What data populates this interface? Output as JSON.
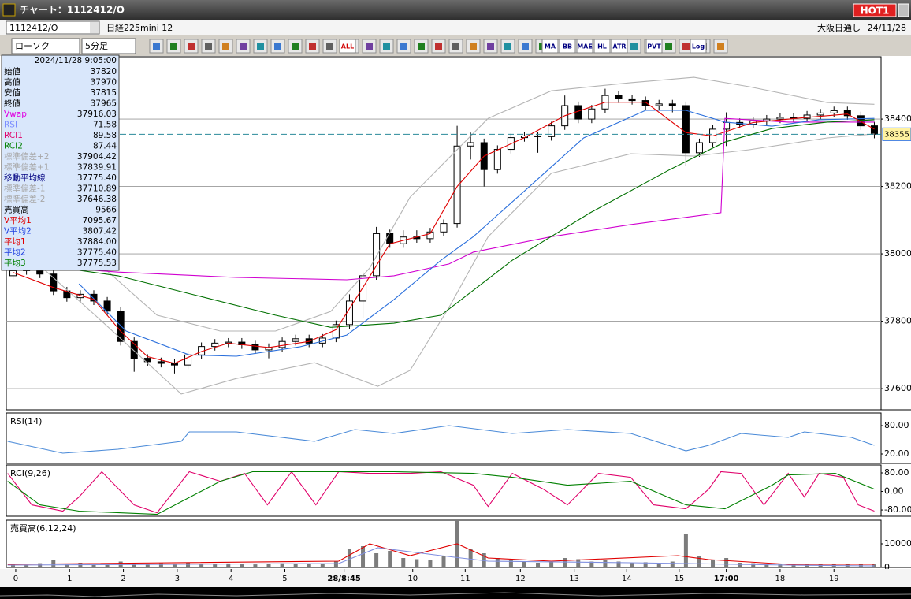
{
  "window": {
    "title": "チャート：1112412/O",
    "hot_button": "HOT1"
  },
  "symbol_bar": {
    "code": "1112412/O",
    "name": "日経225mini 12",
    "market": "大阪日通し",
    "date": "24/11/28"
  },
  "toolbar": {
    "chart_type": "ローソク",
    "interval": "5分足",
    "icon_labels": [
      "ALL",
      "MA",
      "BB",
      "MAE",
      "HL",
      "ATR",
      "PVT",
      "Log"
    ]
  },
  "info_panel": {
    "datetime": "2024/11/28 9:05:00",
    "rows": [
      {
        "label": "始値",
        "value": "37820",
        "color": "#000000"
      },
      {
        "label": "高値",
        "value": "37970",
        "color": "#000000"
      },
      {
        "label": "安値",
        "value": "37815",
        "color": "#000000"
      },
      {
        "label": "終値",
        "value": "37965",
        "color": "#000000"
      },
      {
        "label": "Vwap",
        "value": "37916.03",
        "color": "#e000e0"
      },
      {
        "label": "RSI",
        "value": "71.58",
        "color": "#7a8cff"
      },
      {
        "label": "RCI1",
        "value": "89.58",
        "color": "#e0006a"
      },
      {
        "label": "RCI2",
        "value": "87.44",
        "color": "#008000"
      },
      {
        "label": "標準偏差+2",
        "value": "37904.42",
        "color": "#a8a8a8"
      },
      {
        "label": "標準偏差+1",
        "value": "37839.91",
        "color": "#a8a8a8"
      },
      {
        "label": "移動平均線",
        "value": "37775.40",
        "color": "#000080"
      },
      {
        "label": "標準偏差-1",
        "value": "37710.89",
        "color": "#a8a8a8"
      },
      {
        "label": "標準偏差-2",
        "value": "37646.38",
        "color": "#a8a8a8"
      },
      {
        "label": "売買高",
        "value": "9566",
        "color": "#000000"
      },
      {
        "label": "V平均1",
        "value": "7095.67",
        "color": "#e00000"
      },
      {
        "label": "V平均2",
        "value": "3807.42",
        "color": "#2040e0"
      },
      {
        "label": "平均1",
        "value": "37884.00",
        "color": "#e00000"
      },
      {
        "label": "平均2",
        "value": "37775.40",
        "color": "#2040e0"
      },
      {
        "label": "平均3",
        "value": "37775.53",
        "color": "#008000"
      }
    ]
  },
  "chart_data": [
    {
      "type": "candlestick",
      "xlim": [
        0,
        65
      ],
      "ylim": [
        37537,
        38585
      ],
      "yticks": [
        37600,
        37800,
        38000,
        38200,
        38400
      ],
      "grid": true,
      "up_color": "#ffffff",
      "down_color": "#000000",
      "current_price": 38355,
      "current_price_color": "#2a8a9a",
      "x": [
        0.5,
        1.5,
        2.5,
        3.5,
        4.5,
        5.5,
        6.5,
        7.5,
        8.5,
        9.5,
        10.5,
        11.5,
        12.5,
        13.5,
        14.5,
        15.5,
        16.5,
        17.5,
        18.5,
        19.5,
        20.5,
        21.5,
        22.5,
        23.5,
        24.5,
        25.5,
        26.5,
        27.5,
        28.5,
        29.5,
        30.5,
        31.5,
        32.5,
        33.5,
        34.5,
        35.5,
        36.5,
        37.5,
        38.5,
        39.5,
        40.5,
        41.5,
        42.5,
        43.5,
        44.5,
        45.5,
        46.5,
        47.5,
        48.5,
        49.5,
        50.5,
        51.5,
        52.5,
        53.5,
        54.5,
        55.5,
        56.5,
        57.5,
        58.5,
        59.5,
        60.5,
        61.5,
        62.5,
        63.5,
        64.5
      ],
      "open": [
        37935,
        37950,
        37960,
        37940,
        37890,
        37870,
        37880,
        37860,
        37830,
        37740,
        37690,
        37680,
        37675,
        37670,
        37700,
        37725,
        37735,
        37738,
        37730,
        37715,
        37722,
        37740,
        37748,
        37735,
        37750,
        37790,
        37860,
        37935,
        38060,
        38030,
        38050,
        38045,
        38065,
        38090,
        38320,
        38330,
        38250,
        38310,
        38345,
        38350,
        38348,
        38380,
        38440,
        38400,
        38430,
        38470,
        38460,
        38455,
        38440,
        38445,
        38440,
        38300,
        38330,
        38370,
        38390,
        38385,
        38395,
        38400,
        38405,
        38402,
        38412,
        38418,
        38425,
        38410,
        38380
      ],
      "high": [
        37962,
        37972,
        37972,
        37952,
        37902,
        37892,
        37892,
        37872,
        37842,
        37752,
        37702,
        37692,
        37687,
        37712,
        37737,
        37747,
        37750,
        37750,
        37742,
        37734,
        37752,
        37760,
        37760,
        37762,
        37802,
        37880,
        37947,
        38080,
        38072,
        38070,
        38070,
        38077,
        38102,
        38380,
        38360,
        38342,
        38322,
        38357,
        38362,
        38362,
        38392,
        38470,
        38452,
        38442,
        38490,
        38482,
        38472,
        38467,
        38457,
        38457,
        38452,
        38342,
        38382,
        38420,
        38402,
        38407,
        38412,
        38417,
        38417,
        38424,
        38430,
        38437,
        38437,
        38422,
        38392
      ],
      "low": [
        37923,
        37938,
        37928,
        37878,
        37858,
        37858,
        37848,
        37818,
        37728,
        37650,
        37668,
        37663,
        37645,
        37658,
        37688,
        37713,
        37723,
        37718,
        37703,
        37690,
        37710,
        37728,
        37723,
        37723,
        37738,
        37778,
        37810,
        37923,
        38018,
        38018,
        38033,
        38033,
        38053,
        38078,
        38280,
        38200,
        38238,
        38298,
        38333,
        38300,
        38336,
        38368,
        38388,
        38388,
        38418,
        38448,
        38443,
        38428,
        38428,
        38420,
        38260,
        38288,
        38318,
        38320,
        38373,
        38373,
        38383,
        38388,
        38390,
        38390,
        38400,
        38406,
        38398,
        38368,
        38343
      ],
      "close": [
        37950,
        37960,
        37940,
        37890,
        37870,
        37880,
        37860,
        37830,
        37740,
        37690,
        37680,
        37675,
        37670,
        37700,
        37725,
        37735,
        37738,
        37730,
        37715,
        37722,
        37740,
        37748,
        37735,
        37750,
        37790,
        37860,
        37935,
        38060,
        38030,
        38050,
        38045,
        38065,
        38090,
        38320,
        38330,
        38250,
        38310,
        38345,
        38350,
        38348,
        38380,
        38440,
        38400,
        38430,
        38470,
        38460,
        38455,
        38440,
        38445,
        38440,
        38300,
        38330,
        38370,
        38390,
        38385,
        38395,
        38400,
        38405,
        38402,
        38412,
        38418,
        38425,
        38410,
        38380,
        38355
      ],
      "series": [
        {
          "color": "#b4b4b4",
          "x": [
            0.1,
            6.6,
            11.2,
            15.9,
            20.0,
            24.1,
            27.0,
            30.0,
            32.9,
            35.8,
            40.5,
            46.4,
            51.1,
            55.2,
            61.0,
            64.5
          ],
          "values": [
            38098,
            37981,
            37818,
            37771,
            37771,
            37829,
            37958,
            38168,
            38285,
            38402,
            38484,
            38508,
            38524,
            38496,
            38449,
            38444
          ]
        },
        {
          "color": "#b4b4b4",
          "x": [
            0.1,
            6.6,
            13.0,
            17.1,
            22.9,
            27.6,
            30.0,
            32.9,
            35.8,
            40.5,
            46.4,
            51.1,
            55.2,
            61.0,
            64.5
          ],
          "values": [
            38051,
            37818,
            37584,
            37630,
            37677,
            37607,
            37654,
            37841,
            38051,
            38239,
            38297,
            38290,
            38309,
            38344,
            38356
          ]
        },
        {
          "color": "#d000d0",
          "x": [
            0.1,
            8.3,
            17.1,
            25.3,
            28.8,
            32.9,
            34.7,
            40.5,
            46.4,
            53.1,
            53.4,
            58.1,
            64.5
          ],
          "values": [
            37970,
            37946,
            37930,
            37923,
            37935,
            37970,
            38005,
            38051,
            38087,
            38122,
            38402,
            38391,
            38391
          ]
        },
        {
          "color": "#007000",
          "x": [
            0.1,
            8.3,
            14.2,
            20.0,
            24.1,
            28.8,
            32.3,
            37.6,
            43.4,
            49.3,
            53.4,
            56.9,
            61.0,
            64.5
          ],
          "values": [
            37981,
            37935,
            37876,
            37818,
            37782,
            37794,
            37818,
            37981,
            38122,
            38250,
            38332,
            38372,
            38391,
            38398
          ]
        },
        {
          "color": "#2a6fdc",
          "x": [
            5.4,
            8.9,
            13.6,
            17.1,
            21.8,
            25.3,
            28.8,
            32.3,
            34.7,
            39.3,
            42.9,
            47.5,
            50.5,
            53.4,
            56.9,
            60.4,
            64.5
          ],
          "values": [
            37911,
            37771,
            37700,
            37696,
            37724,
            37759,
            37864,
            37981,
            38051,
            38215,
            38344,
            38426,
            38426,
            38391,
            38379,
            38398,
            38402
          ]
        },
        {
          "color": "#e00000",
          "x": [
            0.5,
            3.5,
            6.5,
            8.5,
            10.5,
            12.5,
            14.5,
            16.5,
            19.5,
            22.5,
            24.5,
            26.5,
            28.5,
            31.5,
            33.5,
            35.5,
            38.5,
            41.5,
            44.5,
            47.5,
            50.5,
            52.5,
            55.5,
            59.5,
            62.5,
            64.5
          ],
          "values": [
            37945,
            37900,
            37865,
            37770,
            37695,
            37675,
            37710,
            37735,
            37722,
            37740,
            37775,
            37900,
            38030,
            38060,
            38200,
            38290,
            38345,
            38410,
            38450,
            38450,
            38360,
            38350,
            38390,
            38405,
            38415,
            38370
          ]
        }
      ]
    },
    {
      "type": "line",
      "title": "RSI(14)",
      "xlim": [
        0,
        65
      ],
      "ylim": [
        0,
        106.7
      ],
      "yticks": [
        {
          "value": 80,
          "label": "80.00"
        },
        {
          "value": 20,
          "label": "20.00"
        }
      ],
      "grid": false,
      "series": [
        {
          "color": "#4a8ad8",
          "x": [
            0.1,
            4.2,
            8.3,
            13.0,
            13.6,
            17.1,
            22.9,
            25.9,
            28.8,
            32.9,
            37.6,
            41.7,
            46.4,
            50.5,
            52.2,
            54.6,
            58.1,
            59.3,
            62.8,
            64.5
          ],
          "values": [
            46.7,
            21.7,
            30,
            46.7,
            66.7,
            66.7,
            46.7,
            71.7,
            63.3,
            80,
            63.3,
            71.7,
            63.3,
            26.7,
            38.3,
            63.3,
            55,
            66.7,
            55,
            38.3
          ]
        }
      ]
    },
    {
      "type": "line",
      "title": "RCI(9,26)",
      "xlim": [
        0,
        65
      ],
      "ylim": [
        -107,
        114
      ],
      "yticks": [
        {
          "value": 80,
          "label": "80.00"
        },
        {
          "value": 0,
          "label": "0.00"
        },
        {
          "value": -80,
          "label": "-80.00"
        }
      ],
      "grid": false,
      "series": [
        {
          "color": "#e0006a",
          "x": [
            0.1,
            1.9,
            4.2,
            5.4,
            7.1,
            9.5,
            11.2,
            13.6,
            15.9,
            17.7,
            19.4,
            21.2,
            23.0,
            24.7,
            27.0,
            30.0,
            32.3,
            34.7,
            35.8,
            37.6,
            39.9,
            41.7,
            44.0,
            46.4,
            48.1,
            50.5,
            52.2,
            53.1,
            54.6,
            56.3,
            58.1,
            59.3,
            60.4,
            62.2,
            63.3,
            64.5
          ],
          "values": [
            78,
            -58,
            -85,
            -24,
            85,
            -58,
            -92,
            85,
            44,
            78,
            -58,
            85,
            -58,
            85,
            78,
            78,
            85,
            27,
            -65,
            78,
            10,
            -58,
            78,
            61,
            -58,
            -75,
            10,
            85,
            78,
            -58,
            78,
            -24,
            78,
            61,
            -58,
            -85
          ]
        },
        {
          "color": "#008000",
          "x": [
            0.1,
            2.5,
            5.4,
            11.2,
            15.9,
            18.3,
            23.0,
            28.8,
            34.7,
            37.6,
            41.7,
            46.4,
            50.5,
            53.4,
            56.9,
            58.1,
            61.6,
            64.5
          ],
          "values": [
            44,
            -58,
            -85,
            -99,
            44,
            85,
            85,
            85,
            78,
            61,
            27,
            44,
            -58,
            -75,
            27,
            71,
            78,
            10
          ]
        }
      ]
    },
    {
      "type": "bar",
      "title": "売買高(6,12,24)",
      "xlim": [
        0,
        65
      ],
      "ylim": [
        0,
        20000
      ],
      "yticks": [
        0,
        10000
      ],
      "grid": false,
      "color": "#7c7c7c",
      "x": [
        0.5,
        1.5,
        2.5,
        3.5,
        4.5,
        5.5,
        6.5,
        7.5,
        8.5,
        9.5,
        10.5,
        11.5,
        12.5,
        13.5,
        14.5,
        15.5,
        16.5,
        17.5,
        18.5,
        19.5,
        20.5,
        21.5,
        22.5,
        23.5,
        24.5,
        25.5,
        26.5,
        27.5,
        28.5,
        29.5,
        30.5,
        31.5,
        32.5,
        33.5,
        34.5,
        35.5,
        36.5,
        37.5,
        38.5,
        39.5,
        40.5,
        41.5,
        42.5,
        43.5,
        44.5,
        45.5,
        46.5,
        47.5,
        48.5,
        49.5,
        50.5,
        51.5,
        52.5,
        53.5,
        54.5,
        55.5,
        56.5,
        57.5,
        58.5,
        59.5,
        60.5,
        61.5,
        62.5,
        63.5,
        64.5
      ],
      "values": [
        1500,
        1200,
        1800,
        3000,
        1500,
        2000,
        1400,
        1800,
        2500,
        2000,
        1500,
        1800,
        1600,
        2000,
        1500,
        1400,
        1700,
        1500,
        1300,
        1600,
        1800,
        1500,
        1400,
        1600,
        2500,
        8000,
        9000,
        6000,
        7000,
        4000,
        3500,
        3000,
        5000,
        20000,
        8000,
        6000,
        4000,
        3000,
        2500,
        2000,
        2500,
        4000,
        3500,
        2500,
        3000,
        2500,
        2000,
        2200,
        1800,
        2500,
        14000,
        5000,
        3000,
        4000,
        2000,
        1800,
        1500,
        1600,
        1400,
        1500,
        1300,
        1500,
        1200,
        1400,
        1300
      ],
      "series": [
        {
          "color": "#e00000",
          "x": [
            0.1,
            24.7,
            27.0,
            30.0,
            33.5,
            35.8,
            40.5,
            49.9,
            52.2,
            58.1,
            64.5
          ],
          "values": [
            1333,
            2667,
            10000,
            5000,
            10000,
            4000,
            2667,
            5000,
            3333,
            1333,
            1333
          ]
        },
        {
          "color": "#8090e0",
          "x": [
            0.1,
            24.7,
            27.6,
            32.3,
            35.8,
            46.4,
            58.1,
            64.5
          ],
          "values": [
            1000,
            1667,
            8333,
            5000,
            2667,
            2000,
            1000,
            667
          ]
        }
      ],
      "xticks": [
        {
          "value": 0.7,
          "label": "0"
        },
        {
          "value": 4.7,
          "label": "1"
        },
        {
          "value": 8.7,
          "label": "2"
        },
        {
          "value": 12.7,
          "label": "3"
        },
        {
          "value": 16.7,
          "label": "4"
        },
        {
          "value": 20.7,
          "label": "5"
        },
        {
          "value": 25.1,
          "label": "28/8:45"
        },
        {
          "value": 30.2,
          "label": "10"
        },
        {
          "value": 34.1,
          "label": "11"
        },
        {
          "value": 38.2,
          "label": "12"
        },
        {
          "value": 42.2,
          "label": "13"
        },
        {
          "value": 46.1,
          "label": "14"
        },
        {
          "value": 50.0,
          "label": "15"
        },
        {
          "value": 53.5,
          "label": "17:00"
        },
        {
          "value": 57.5,
          "label": "18"
        },
        {
          "value": 61.5,
          "label": "19"
        }
      ]
    }
  ]
}
